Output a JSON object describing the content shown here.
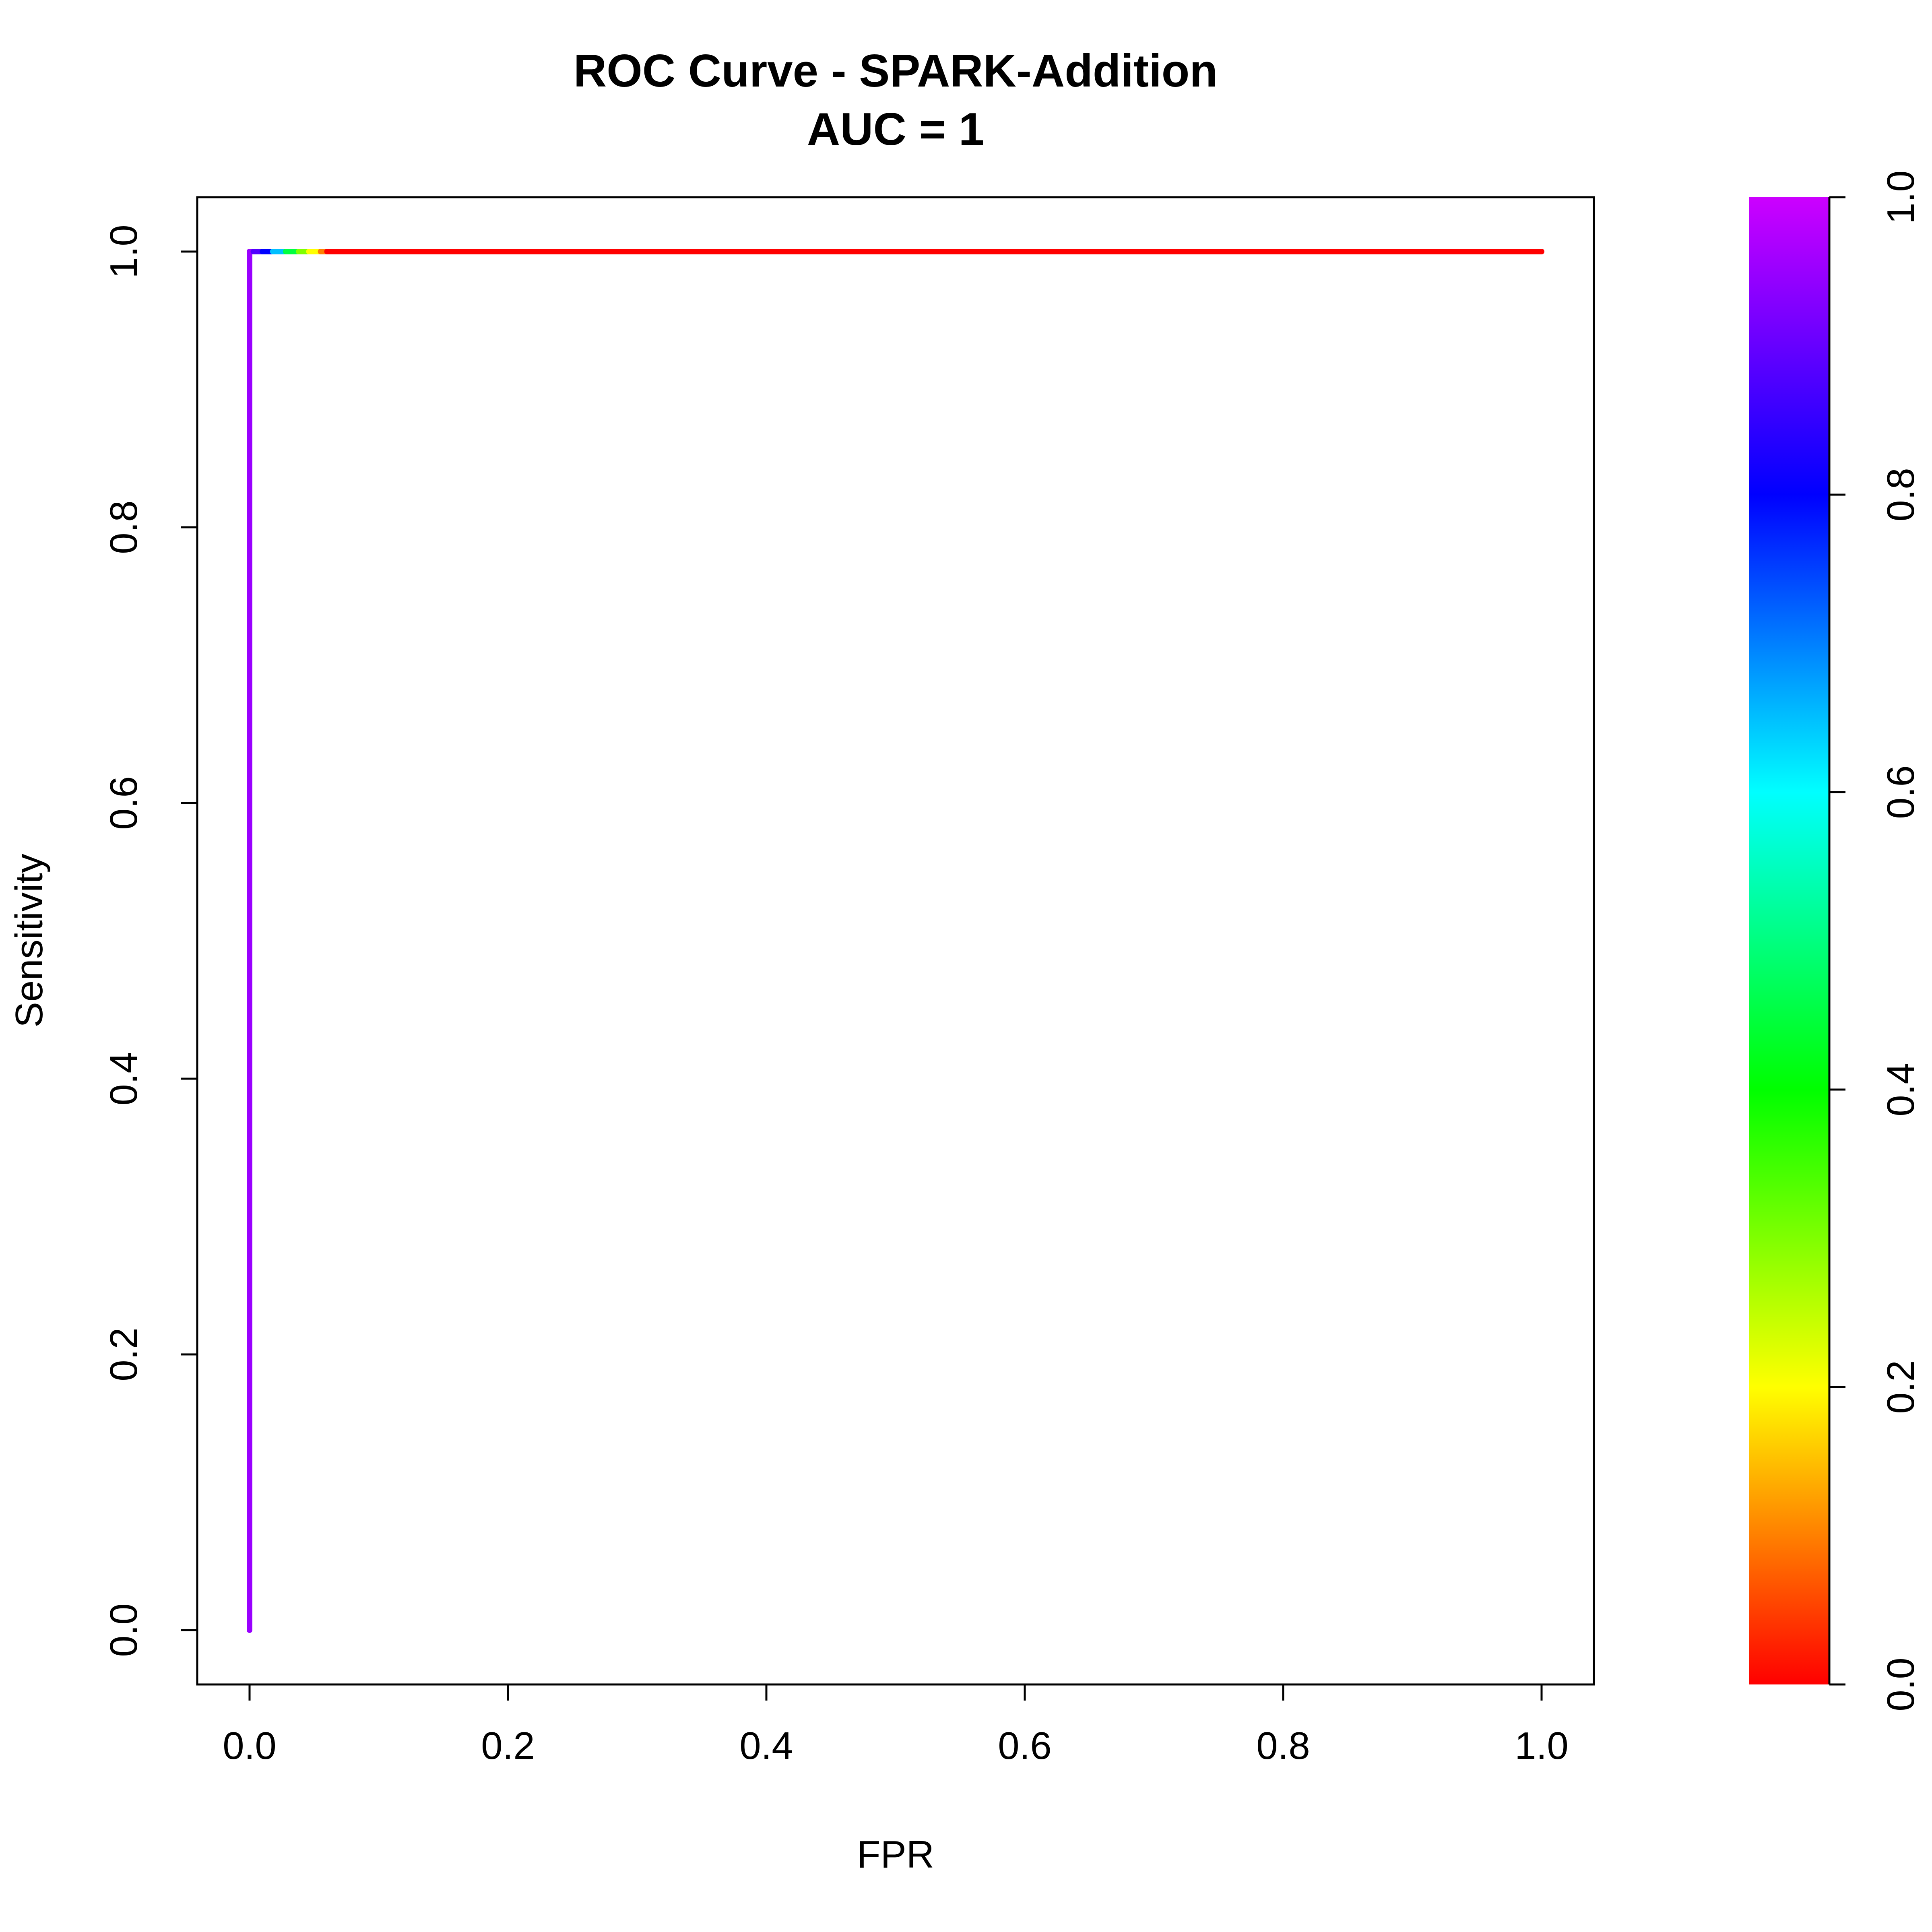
{
  "chart_data": {
    "type": "line",
    "title": "ROC Curve - SPARK-Addition",
    "subtitle": "AUC = 1",
    "xlabel": "FPR",
    "ylabel": "Sensitivity",
    "xlim": [
      0,
      1
    ],
    "ylim": [
      0,
      1
    ],
    "x_ticks": [
      "0.0",
      "0.2",
      "0.4",
      "0.6",
      "0.8",
      "1.0"
    ],
    "y_ticks": [
      "0.0",
      "0.2",
      "0.4",
      "0.6",
      "0.8",
      "1.0"
    ],
    "grid": false,
    "series": [
      {
        "points": [
          {
            "x": 0.0,
            "y": 0.0,
            "threshold": 0.95
          },
          {
            "x": 0.0,
            "y": 1.0,
            "threshold": 0.95
          },
          {
            "x": 0.003,
            "y": 1.0,
            "threshold": 0.88
          },
          {
            "x": 0.01,
            "y": 1.0,
            "threshold": 0.8
          },
          {
            "x": 0.018,
            "y": 1.0,
            "threshold": 0.65
          },
          {
            "x": 0.028,
            "y": 1.0,
            "threshold": 0.45
          },
          {
            "x": 0.038,
            "y": 1.0,
            "threshold": 0.3
          },
          {
            "x": 0.046,
            "y": 1.0,
            "threshold": 0.2
          },
          {
            "x": 0.055,
            "y": 1.0,
            "threshold": 0.1
          },
          {
            "x": 0.06,
            "y": 1.0,
            "threshold": 0.0
          },
          {
            "x": 1.0,
            "y": 1.0,
            "threshold": 0.0
          }
        ]
      }
    ],
    "colorbar": {
      "range": [
        0,
        1
      ],
      "ticks": [
        "0.0",
        "0.2",
        "0.4",
        "0.6",
        "0.8",
        "1.0"
      ],
      "colors": [
        "#FF0000",
        "#FFFF00",
        "#00FF00",
        "#00FFFF",
        "#0000FF",
        "#CC00FF"
      ]
    }
  }
}
